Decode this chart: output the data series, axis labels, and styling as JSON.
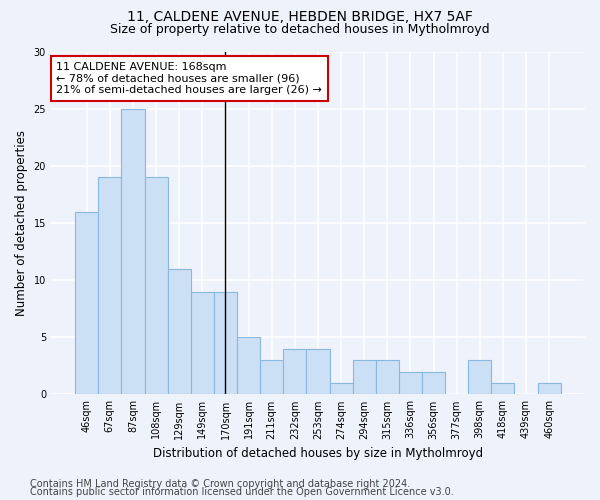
{
  "title": "11, CALDENE AVENUE, HEBDEN BRIDGE, HX7 5AF",
  "subtitle": "Size of property relative to detached houses in Mytholmroyd",
  "xlabel": "Distribution of detached houses by size in Mytholmroyd",
  "ylabel": "Number of detached properties",
  "categories": [
    "46sqm",
    "67sqm",
    "87sqm",
    "108sqm",
    "129sqm",
    "149sqm",
    "170sqm",
    "191sqm",
    "211sqm",
    "232sqm",
    "253sqm",
    "274sqm",
    "294sqm",
    "315sqm",
    "336sqm",
    "356sqm",
    "377sqm",
    "398sqm",
    "418sqm",
    "439sqm",
    "460sqm"
  ],
  "values": [
    16,
    19,
    25,
    19,
    11,
    9,
    9,
    5,
    3,
    4,
    4,
    1,
    3,
    3,
    2,
    2,
    0,
    3,
    1,
    0,
    1
  ],
  "bar_color": "#cce0f5",
  "bar_edge_color": "#88b8df",
  "highlight_bar_index": 6,
  "annotation_line1": "11 CALDENE AVENUE: 168sqm",
  "annotation_line2": "← 78% of detached houses are smaller (96)",
  "annotation_line3": "21% of semi-detached houses are larger (26) →",
  "annotation_box_color": "white",
  "annotation_box_edge_color": "#cc0000",
  "ylim": [
    0,
    30
  ],
  "yticks": [
    0,
    5,
    10,
    15,
    20,
    25,
    30
  ],
  "background_color": "#eef2fb",
  "grid_color": "white",
  "footer_line1": "Contains HM Land Registry data © Crown copyright and database right 2024.",
  "footer_line2": "Contains public sector information licensed under the Open Government Licence v3.0.",
  "title_fontsize": 10,
  "subtitle_fontsize": 9,
  "tick_fontsize": 7,
  "ylabel_fontsize": 8.5,
  "xlabel_fontsize": 8.5,
  "annotation_fontsize": 8,
  "footer_fontsize": 7
}
